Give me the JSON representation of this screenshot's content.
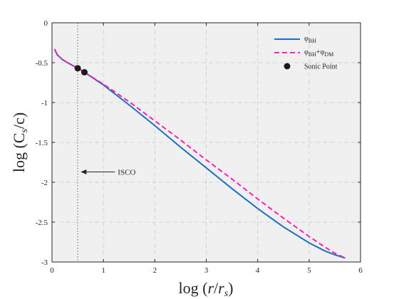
{
  "chart_data": {
    "type": "line",
    "title": "",
    "xlabel": "log (r/r_s)",
    "ylabel": "log (C_s/c)",
    "xlim": [
      0,
      6
    ],
    "ylim": [
      -3,
      0
    ],
    "xticks": [
      0,
      1,
      2,
      3,
      4,
      5,
      6
    ],
    "yticks": [
      0,
      -0.5,
      -1,
      -1.5,
      -2,
      -2.5,
      -3
    ],
    "xtick_labels": [
      "0",
      "1",
      "2",
      "3",
      "4",
      "5",
      "6"
    ],
    "ytick_labels": [
      "0",
      "-0.5",
      "-1",
      "-1.5",
      "-2",
      "-2.5",
      "-3"
    ],
    "grid": true,
    "legend_position": "top-right",
    "series": [
      {
        "name": "φBH",
        "color": "#1f6fbf",
        "style": "solid",
        "x": [
          0.05,
          0.1,
          0.2,
          0.3,
          0.5,
          0.7,
          1.0,
          1.5,
          2.0,
          2.5,
          3.0,
          3.5,
          4.0,
          4.5,
          5.0,
          5.3,
          5.5,
          5.7
        ],
        "y": [
          -0.33,
          -0.4,
          -0.46,
          -0.5,
          -0.57,
          -0.65,
          -0.78,
          -1.03,
          -1.29,
          -1.56,
          -1.82,
          -2.08,
          -2.33,
          -2.56,
          -2.76,
          -2.86,
          -2.91,
          -2.95
        ]
      },
      {
        "name": "φBH+φDM",
        "color": "#ff1fb4",
        "style": "dashed",
        "x": [
          0.05,
          0.1,
          0.2,
          0.3,
          0.5,
          0.7,
          1.0,
          1.5,
          2.0,
          2.5,
          3.0,
          3.5,
          4.0,
          4.5,
          5.0,
          5.3,
          5.5,
          5.7
        ],
        "y": [
          -0.33,
          -0.4,
          -0.46,
          -0.5,
          -0.57,
          -0.65,
          -0.77,
          -0.99,
          -1.23,
          -1.47,
          -1.72,
          -1.96,
          -2.21,
          -2.45,
          -2.68,
          -2.81,
          -2.89,
          -2.95
        ]
      }
    ],
    "sonic_points": {
      "name": "Sonic Point",
      "color": "#1a1a1a",
      "x": [
        0.5,
        0.63
      ],
      "y": [
        -0.57,
        -0.62
      ]
    },
    "reference_line": {
      "x": 0.5,
      "color": "#7f7f7f",
      "style": "dotted"
    },
    "annotation": {
      "text": "ISCO",
      "x": 0.6,
      "y": -1.87
    }
  }
}
